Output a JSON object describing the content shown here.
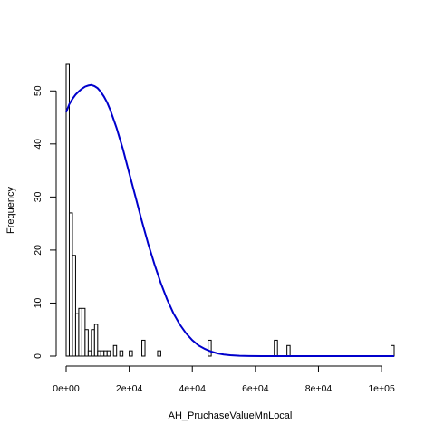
{
  "chart_data": {
    "type": "bar",
    "subtype": "histogram-with-density-curve",
    "title": "",
    "xlabel": "AH_PruchaseValueMnLocal",
    "ylabel": "Frequency",
    "xlim": [
      0,
      104000
    ],
    "ylim": [
      0,
      55
    ],
    "x_ticks": [
      0,
      20000,
      40000,
      60000,
      80000,
      100000
    ],
    "x_tick_labels": [
      "0e+00",
      "2e+04",
      "4e+04",
      "6e+04",
      "8e+04",
      "1e+05"
    ],
    "y_ticks": [
      0,
      10,
      20,
      30,
      40,
      50
    ],
    "y_tick_labels": [
      "0",
      "10",
      "20",
      "30",
      "40",
      "50"
    ],
    "bin_width": 1000,
    "bins": [
      {
        "x0": 0,
        "x1": 1000,
        "count": 55
      },
      {
        "x0": 1000,
        "x1": 2000,
        "count": 27
      },
      {
        "x0": 2000,
        "x1": 3000,
        "count": 19
      },
      {
        "x0": 3000,
        "x1": 4000,
        "count": 8
      },
      {
        "x0": 4000,
        "x1": 5000,
        "count": 9
      },
      {
        "x0": 5000,
        "x1": 6000,
        "count": 9
      },
      {
        "x0": 6000,
        "x1": 7000,
        "count": 5
      },
      {
        "x0": 7000,
        "x1": 8000,
        "count": 1
      },
      {
        "x0": 8000,
        "x1": 9000,
        "count": 5
      },
      {
        "x0": 9000,
        "x1": 10000,
        "count": 6
      },
      {
        "x0": 10000,
        "x1": 11000,
        "count": 1
      },
      {
        "x0": 11000,
        "x1": 12000,
        "count": 1
      },
      {
        "x0": 12000,
        "x1": 13000,
        "count": 1
      },
      {
        "x0": 13000,
        "x1": 14000,
        "count": 1
      },
      {
        "x0": 15000,
        "x1": 16000,
        "count": 2
      },
      {
        "x0": 17000,
        "x1": 18000,
        "count": 1
      },
      {
        "x0": 20000,
        "x1": 21000,
        "count": 1
      },
      {
        "x0": 24000,
        "x1": 25000,
        "count": 3
      },
      {
        "x0": 29000,
        "x1": 30000,
        "count": 1
      },
      {
        "x0": 45000,
        "x1": 46000,
        "count": 3
      },
      {
        "x0": 66000,
        "x1": 67000,
        "count": 3
      },
      {
        "x0": 70000,
        "x1": 71000,
        "count": 2
      },
      {
        "x0": 103000,
        "x1": 104000,
        "count": 2
      }
    ],
    "density_curve": {
      "color": "#0000CC",
      "points": [
        [
          0,
          46
        ],
        [
          1000,
          47.5
        ],
        [
          2000,
          48.5
        ],
        [
          3000,
          49.3
        ],
        [
          4000,
          49.9
        ],
        [
          5000,
          50.4
        ],
        [
          6000,
          50.8
        ],
        [
          7000,
          51.0
        ],
        [
          8000,
          51.1
        ],
        [
          9000,
          50.9
        ],
        [
          10000,
          50.5
        ],
        [
          11000,
          49.8
        ],
        [
          12000,
          48.9
        ],
        [
          13000,
          47.8
        ],
        [
          14000,
          46.4
        ],
        [
          16000,
          43.0
        ],
        [
          18000,
          39.0
        ],
        [
          20000,
          34.5
        ],
        [
          22000,
          30.0
        ],
        [
          24000,
          25.5
        ],
        [
          26000,
          21.2
        ],
        [
          28000,
          17.3
        ],
        [
          30000,
          13.8
        ],
        [
          32000,
          10.7
        ],
        [
          34000,
          8.1
        ],
        [
          36000,
          6.0
        ],
        [
          38000,
          4.3
        ],
        [
          40000,
          3.0
        ],
        [
          42000,
          2.0
        ],
        [
          44000,
          1.35
        ],
        [
          46000,
          0.85
        ],
        [
          48000,
          0.52
        ],
        [
          50000,
          0.3
        ],
        [
          52000,
          0.17
        ],
        [
          55000,
          0.07
        ],
        [
          58000,
          0.02
        ],
        [
          62000,
          0.0
        ],
        [
          70000,
          0.0
        ],
        [
          80000,
          0.0
        ],
        [
          90000,
          0.0
        ],
        [
          104000,
          0.0
        ]
      ]
    },
    "grid": false,
    "legend": "none",
    "bar_fill": "#ffffff",
    "bar_stroke": "#000000"
  }
}
